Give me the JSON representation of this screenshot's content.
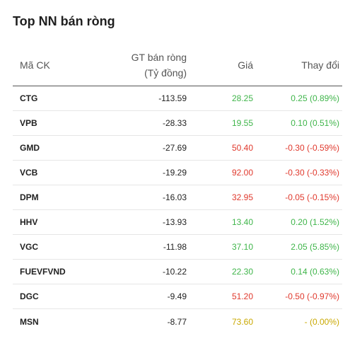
{
  "title": "Top NN bán ròng",
  "headers": {
    "code": "Mã CK",
    "value_line1": "GT bán ròng",
    "value_line2": "(Tỷ đồng)",
    "price": "Giá",
    "change": "Thay đổi"
  },
  "colors": {
    "up": "#3fb54a",
    "down": "#e0392d",
    "ref": "#c9a800"
  },
  "rows": [
    {
      "code": "CTG",
      "value": "-113.59",
      "price": "28.25",
      "change": "0.25 (0.89%)",
      "trend": "up"
    },
    {
      "code": "VPB",
      "value": "-28.33",
      "price": "19.55",
      "change": "0.10 (0.51%)",
      "trend": "up"
    },
    {
      "code": "GMD",
      "value": "-27.69",
      "price": "50.40",
      "change": "-0.30 (-0.59%)",
      "trend": "down"
    },
    {
      "code": "VCB",
      "value": "-19.29",
      "price": "92.00",
      "change": "-0.30 (-0.33%)",
      "trend": "down"
    },
    {
      "code": "DPM",
      "value": "-16.03",
      "price": "32.95",
      "change": "-0.05 (-0.15%)",
      "trend": "down"
    },
    {
      "code": "HHV",
      "value": "-13.93",
      "price": "13.40",
      "change": "0.20 (1.52%)",
      "trend": "up"
    },
    {
      "code": "VGC",
      "value": "-11.98",
      "price": "37.10",
      "change": "2.05 (5.85%)",
      "trend": "up"
    },
    {
      "code": "FUEVFVND",
      "value": "-10.22",
      "price": "22.30",
      "change": "0.14 (0.63%)",
      "trend": "up"
    },
    {
      "code": "DGC",
      "value": "-9.49",
      "price": "51.20",
      "change": "-0.50 (-0.97%)",
      "trend": "down"
    },
    {
      "code": "MSN",
      "value": "-8.77",
      "price": "73.60",
      "change": "- (0.00%)",
      "trend": "ref"
    }
  ]
}
